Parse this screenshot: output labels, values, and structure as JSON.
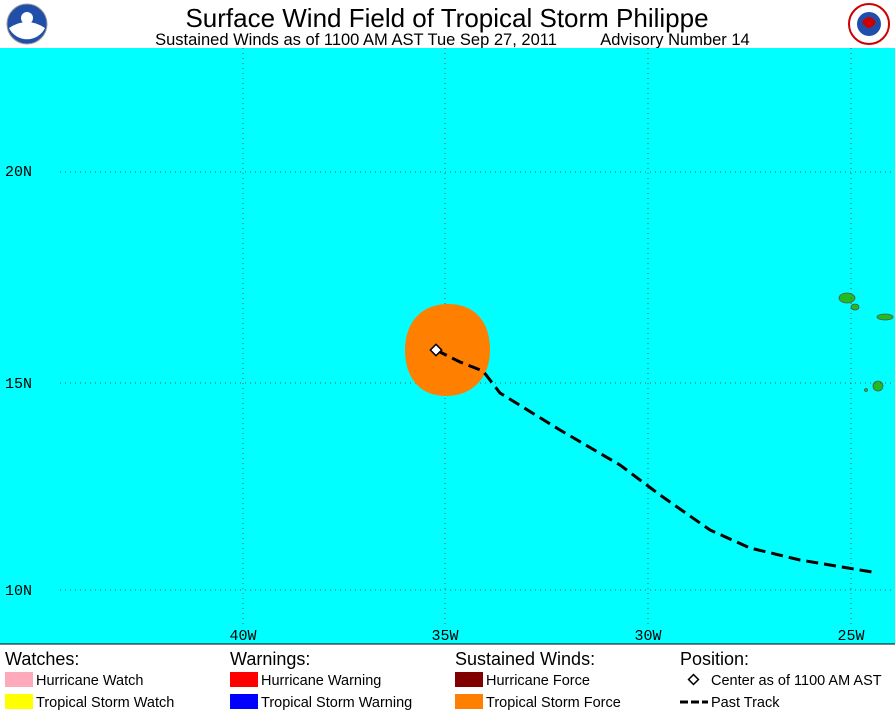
{
  "header": {
    "title": "Surface Wind Field of Tropical Storm Philippe",
    "subtitle": "Sustained Winds as of 1100 AM AST Tue Sep 27, 2011",
    "advisory": "Advisory Number 14"
  },
  "map": {
    "latitude_labels": [
      "20N",
      "15N",
      "10N"
    ],
    "longitude_labels": [
      "40W",
      "35W",
      "30W",
      "25W"
    ]
  },
  "legend": [
    {
      "heading": "Watches:",
      "items": [
        "Hurricane Watch",
        "Tropical Storm Watch"
      ]
    },
    {
      "heading": "Warnings:",
      "items": [
        "Hurricane Warning",
        "Tropical Storm Warning"
      ]
    },
    {
      "heading": "Sustained Winds:",
      "items": [
        "Hurricane Force",
        "Tropical Storm Force"
      ]
    },
    {
      "heading": "Position:",
      "items": [
        "Center as of 1100 AM AST",
        "Past Track"
      ]
    }
  ]
}
